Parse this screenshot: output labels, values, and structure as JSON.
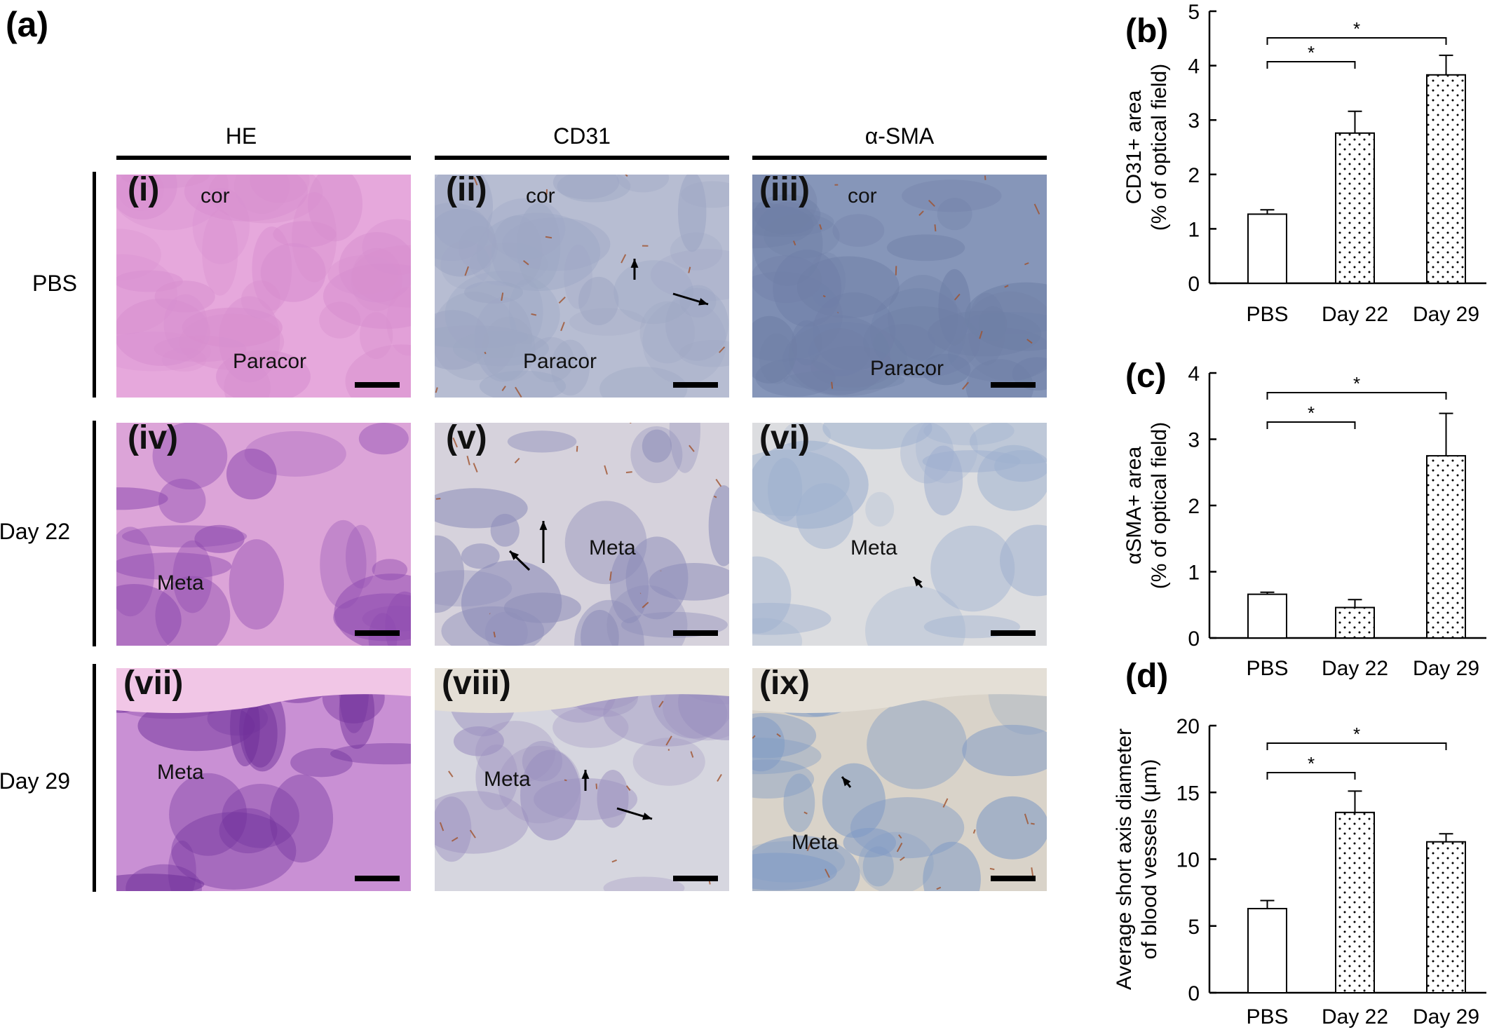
{
  "panel_a": {
    "letter": "(a)",
    "columns": [
      "HE",
      "CD31",
      "α-SMA"
    ],
    "rows": [
      "PBS",
      "Day 22",
      "Day 29"
    ],
    "tiles": [
      {
        "roman": "(i)",
        "labels": [
          "cor",
          "Paracor"
        ],
        "stain": "he-uniform"
      },
      {
        "roman": "(ii)",
        "labels": [
          "cor",
          "Paracor"
        ],
        "stain": "cd31-blue"
      },
      {
        "roman": "(iii)",
        "labels": [
          "cor",
          "Paracor"
        ],
        "stain": "sma-blue"
      },
      {
        "roman": "(iv)",
        "labels": [
          "Meta"
        ],
        "stain": "he-mottled"
      },
      {
        "roman": "(v)",
        "labels": [
          "Meta"
        ],
        "stain": "cd31-mottled"
      },
      {
        "roman": "(vi)",
        "labels": [
          "Meta"
        ],
        "stain": "sma-light"
      },
      {
        "roman": "(vii)",
        "labels": [
          "Meta"
        ],
        "stain": "he-dark"
      },
      {
        "roman": "(viii)",
        "labels": [
          "Meta"
        ],
        "stain": "cd31-light"
      },
      {
        "roman": "(ix)",
        "labels": [
          "Meta"
        ],
        "stain": "sma-mixed"
      }
    ],
    "colors": {
      "he": "#d98fcf",
      "he_dark": "#8e3ea6",
      "cd31": "#aab4cc",
      "sma": "#7f93b8",
      "vessel": "#a0522d"
    }
  },
  "chart_data": [
    {
      "panel": "(b)",
      "type": "bar",
      "categories": [
        "PBS",
        "Day 22",
        "Day 29"
      ],
      "values": [
        1.27,
        2.76,
        3.83
      ],
      "errors": [
        0.08,
        0.4,
        0.36
      ],
      "ylabel_line1": "CD31+ area",
      "ylabel_line2": "(% of optical field)",
      "ylim": [
        0,
        5
      ],
      "yticks": [
        0,
        1,
        2,
        3,
        4,
        5
      ],
      "significance": [
        "*",
        "*"
      ],
      "fill": [
        "open",
        "dotted",
        "dotted"
      ]
    },
    {
      "panel": "(c)",
      "type": "bar",
      "categories": [
        "PBS",
        "Day 22",
        "Day 29"
      ],
      "values": [
        0.66,
        0.46,
        2.75
      ],
      "errors": [
        0.03,
        0.12,
        0.64
      ],
      "ylabel_line1": "αSMA+ area",
      "ylabel_line2": "(% of optical field)",
      "ylim": [
        0,
        4
      ],
      "yticks": [
        0,
        1,
        2,
        3,
        4
      ],
      "significance": [
        "*",
        "*"
      ],
      "fill": [
        "open",
        "dotted",
        "dotted"
      ]
    },
    {
      "panel": "(d)",
      "type": "bar",
      "categories": [
        "PBS",
        "Day 22",
        "Day 29"
      ],
      "values": [
        6.3,
        13.5,
        11.3
      ],
      "errors": [
        0.6,
        1.6,
        0.6
      ],
      "ylabel_line1": "Average short axis diameter",
      "ylabel_line2": "of blood vessels (μm)",
      "ylim": [
        0,
        20
      ],
      "yticks": [
        0,
        5,
        10,
        15,
        20
      ],
      "significance": [
        "*",
        "*"
      ],
      "fill": [
        "open",
        "dotted",
        "dotted"
      ]
    }
  ]
}
